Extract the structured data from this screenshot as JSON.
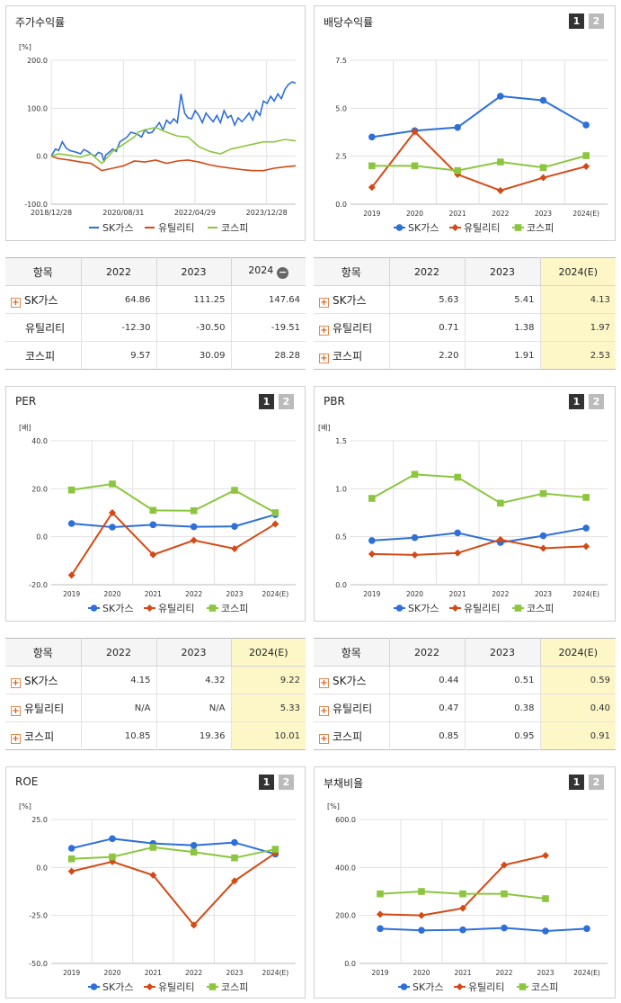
{
  "series_names": [
    "SK가스",
    "유틸리티",
    "코스피"
  ],
  "colors": {
    "sk": "#2e6fd8",
    "util": "#d44a16",
    "kospi": "#8cc63f"
  },
  "panels": {
    "stock": {
      "title": "주가수익률",
      "unit": "[%]"
    },
    "dividend": {
      "title": "배당수익률",
      "tabs": [
        "1",
        "2"
      ]
    },
    "per": {
      "title": "PER",
      "unit": "[배]",
      "tabs": [
        "1",
        "2"
      ]
    },
    "pbr": {
      "title": "PBR",
      "unit": "[배]",
      "tabs": [
        "1",
        "2"
      ]
    },
    "roe": {
      "title": "ROE",
      "unit": "[%]",
      "tabs": [
        "1",
        "2"
      ]
    },
    "debt": {
      "title": "부채비율",
      "unit": "[%]",
      "tabs": [
        "1",
        "2"
      ]
    }
  },
  "tables": {
    "stock": {
      "headers": [
        "항목",
        "2022",
        "2023",
        "2024"
      ],
      "rows": [
        {
          "label": "SK가스",
          "plus": true,
          "values": [
            "64.86",
            "111.25",
            "147.64"
          ]
        },
        {
          "label": "유틸리티",
          "plus": false,
          "values": [
            "-12.30",
            "-30.50",
            "-19.51"
          ]
        },
        {
          "label": "코스피",
          "plus": false,
          "values": [
            "9.57",
            "30.09",
            "28.28"
          ]
        }
      ]
    },
    "dividend": {
      "headers": [
        "항목",
        "2022",
        "2023",
        "2024(E)"
      ],
      "rows": [
        {
          "label": "SK가스",
          "plus": true,
          "values": [
            "5.63",
            "5.41",
            "4.13"
          ]
        },
        {
          "label": "유틸리티",
          "plus": true,
          "values": [
            "0.71",
            "1.38",
            "1.97"
          ]
        },
        {
          "label": "코스피",
          "plus": true,
          "values": [
            "2.20",
            "1.91",
            "2.53"
          ]
        }
      ]
    },
    "per": {
      "headers": [
        "항목",
        "2022",
        "2023",
        "2024(E)"
      ],
      "rows": [
        {
          "label": "SK가스",
          "plus": true,
          "values": [
            "4.15",
            "4.32",
            "9.22"
          ]
        },
        {
          "label": "유틸리티",
          "plus": true,
          "values": [
            "N/A",
            "N/A",
            "5.33"
          ]
        },
        {
          "label": "코스피",
          "plus": true,
          "values": [
            "10.85",
            "19.36",
            "10.01"
          ]
        }
      ]
    },
    "pbr": {
      "headers": [
        "항목",
        "2022",
        "2023",
        "2024(E)"
      ],
      "rows": [
        {
          "label": "SK가스",
          "plus": true,
          "values": [
            "0.44",
            "0.51",
            "0.59"
          ]
        },
        {
          "label": "유틸리티",
          "plus": true,
          "values": [
            "0.47",
            "0.38",
            "0.40"
          ]
        },
        {
          "label": "코스피",
          "plus": true,
          "values": [
            "0.85",
            "0.95",
            "0.91"
          ]
        }
      ]
    }
  },
  "chart_data": [
    {
      "id": "stock",
      "type": "line",
      "x_ticks": [
        "2018/12/28",
        "2020/08/31",
        "2022/04/29",
        "2023/12/28"
      ],
      "y_ticks": [
        "200.0",
        "100.0",
        "0.0",
        "-100.0"
      ],
      "ylim": [
        -100,
        200
      ],
      "x_range": [
        "2018/12/28",
        "2024/08/30"
      ],
      "series": [
        {
          "name": "SK가스",
          "x": [
            "2018/12/28",
            "2019/02/01",
            "2019/03/01",
            "2019/04/01",
            "2019/05/01",
            "2019/06/01",
            "2019/07/01",
            "2019/08/01",
            "2019/09/01",
            "2019/10/01",
            "2019/11/01",
            "2019/12/01",
            "2020/01/02",
            "2020/02/01",
            "2020/03/01",
            "2020/03/20",
            "2020/04/01",
            "2020/05/01",
            "2020/06/01",
            "2020/07/01",
            "2020/08/01",
            "2020/09/01",
            "2020/10/01",
            "2020/11/01",
            "2020/12/01",
            "2021/01/01",
            "2021/02/01",
            "2021/03/01",
            "2021/04/01",
            "2021/05/01",
            "2021/06/01",
            "2021/07/01",
            "2021/08/01",
            "2021/09/01",
            "2021/10/01",
            "2021/11/01",
            "2021/12/01",
            "2022/01/01",
            "2022/02/01",
            "2022/03/01",
            "2022/04/01",
            "2022/05/01",
            "2022/06/01",
            "2022/07/01",
            "2022/08/01",
            "2022/09/01",
            "2022/10/01",
            "2022/11/01",
            "2022/12/01",
            "2023/01/01",
            "2023/02/01",
            "2023/03/01",
            "2023/04/01",
            "2023/05/01",
            "2023/06/01",
            "2023/07/01",
            "2023/08/01",
            "2023/09/01",
            "2023/10/01",
            "2023/11/01",
            "2023/12/01",
            "2024/01/01",
            "2024/02/01",
            "2024/03/01",
            "2024/04/01",
            "2024/05/01",
            "2024/06/01",
            "2024/07/01",
            "2024/08/01",
            "2024/08/30"
          ],
          "values": [
            0,
            15,
            12,
            30,
            18,
            12,
            10,
            8,
            5,
            14,
            10,
            5,
            0,
            8,
            5,
            -12,
            2,
            8,
            15,
            10,
            30,
            35,
            40,
            50,
            48,
            45,
            40,
            55,
            48,
            50,
            60,
            70,
            55,
            75,
            68,
            78,
            70,
            130,
            90,
            80,
            78,
            95,
            85,
            70,
            90,
            80,
            72,
            85,
            70,
            95,
            80,
            85,
            65,
            80,
            72,
            80,
            90,
            75,
            95,
            85,
            115,
            110,
            125,
            115,
            130,
            120,
            140,
            150,
            155,
            152
          ]
        },
        {
          "name": "유틸리티",
          "x": [
            "2018/12/28",
            "2019/03/01",
            "2019/06/01",
            "2019/09/01",
            "2019/12/01",
            "2020/03/01",
            "2020/06/01",
            "2020/09/01",
            "2020/12/01",
            "2021/03/01",
            "2021/06/01",
            "2021/09/01",
            "2021/12/01",
            "2022/03/01",
            "2022/06/01",
            "2022/09/01",
            "2022/12/01",
            "2023/03/01",
            "2023/06/01",
            "2023/09/01",
            "2023/12/01",
            "2024/03/01",
            "2024/06/01",
            "2024/08/30"
          ],
          "values": [
            0,
            -5,
            -8,
            -12,
            -15,
            -30,
            -25,
            -20,
            -10,
            -12,
            -8,
            -15,
            -10,
            -8,
            -12,
            -18,
            -22,
            -25,
            -28,
            -30,
            -30,
            -25,
            -22,
            -20
          ]
        },
        {
          "name": "코스피",
          "x": [
            "2018/12/28",
            "2019/03/01",
            "2019/06/01",
            "2019/09/01",
            "2019/12/01",
            "2020/03/01",
            "2020/06/01",
            "2020/09/01",
            "2020/12/01",
            "2021/01/01",
            "2021/03/01",
            "2021/06/01",
            "2021/09/01",
            "2021/12/01",
            "2022/03/01",
            "2022/06/01",
            "2022/09/01",
            "2022/12/01",
            "2023/03/01",
            "2023/06/01",
            "2023/09/01",
            "2023/12/01",
            "2024/03/01",
            "2024/06/01",
            "2024/08/30"
          ],
          "values": [
            0,
            5,
            2,
            -2,
            5,
            -15,
            10,
            25,
            40,
            50,
            55,
            60,
            50,
            42,
            40,
            20,
            10,
            5,
            15,
            20,
            25,
            30,
            30,
            35,
            32
          ]
        }
      ]
    },
    {
      "id": "dividend",
      "type": "line",
      "categories": [
        "2019",
        "2020",
        "2021",
        "2022",
        "2023",
        "2024(E)"
      ],
      "y_ticks": [
        "7.5",
        "5.0",
        "2.5",
        "0.0"
      ],
      "ylim": [
        0,
        7.5
      ],
      "series": [
        {
          "name": "SK가스",
          "values": [
            3.5,
            3.83,
            4.0,
            5.63,
            5.41,
            4.13
          ]
        },
        {
          "name": "유틸리티",
          "values": [
            0.88,
            3.78,
            1.55,
            0.71,
            1.38,
            1.97
          ]
        },
        {
          "name": "코스피",
          "values": [
            2.0,
            2.0,
            1.75,
            2.2,
            1.91,
            2.53
          ]
        }
      ]
    },
    {
      "id": "per",
      "type": "line",
      "categories": [
        "2019",
        "2020",
        "2021",
        "2022",
        "2023",
        "2024(E)"
      ],
      "y_ticks": [
        "40.0",
        "20.0",
        "0.0",
        "-20.0"
      ],
      "ylim": [
        -20,
        40
      ],
      "series": [
        {
          "name": "SK가스",
          "values": [
            5.5,
            4.0,
            5.0,
            4.15,
            4.32,
            9.22
          ]
        },
        {
          "name": "유틸리티",
          "values": [
            -16.0,
            10.0,
            -7.5,
            -1.5,
            -5.0,
            5.33
          ]
        },
        {
          "name": "코스피",
          "values": [
            19.5,
            22.0,
            11.0,
            10.85,
            19.36,
            10.01
          ]
        }
      ]
    },
    {
      "id": "pbr",
      "type": "line",
      "categories": [
        "2019",
        "2020",
        "2021",
        "2022",
        "2023",
        "2024(E)"
      ],
      "y_ticks": [
        "1.5",
        "1.0",
        "0.5",
        "0.0"
      ],
      "ylim": [
        0,
        1.5
      ],
      "series": [
        {
          "name": "SK가스",
          "values": [
            0.46,
            0.49,
            0.54,
            0.44,
            0.51,
            0.59
          ]
        },
        {
          "name": "유틸리티",
          "values": [
            0.32,
            0.31,
            0.33,
            0.47,
            0.38,
            0.4
          ]
        },
        {
          "name": "코스피",
          "values": [
            0.9,
            1.15,
            1.12,
            0.85,
            0.95,
            0.91
          ]
        }
      ]
    },
    {
      "id": "roe",
      "type": "line",
      "categories": [
        "2019",
        "2020",
        "2021",
        "2022",
        "2023",
        "2024(E)"
      ],
      "y_ticks": [
        "25.0",
        "0.0",
        "-25.0",
        "-50.0"
      ],
      "ylim": [
        -50,
        25
      ],
      "series": [
        {
          "name": "SK가스",
          "values": [
            10.0,
            15.0,
            12.5,
            11.5,
            13.0,
            7.0
          ]
        },
        {
          "name": "유틸리티",
          "values": [
            -2.0,
            3.0,
            -4.0,
            -30.0,
            -7.0,
            7.5
          ]
        },
        {
          "name": "코스피",
          "values": [
            4.5,
            5.5,
            10.5,
            8.0,
            5.0,
            9.5
          ]
        }
      ]
    },
    {
      "id": "debt",
      "type": "line",
      "categories": [
        "2019",
        "2020",
        "2021",
        "2022",
        "2023",
        "2024(E)"
      ],
      "y_ticks": [
        "600.0",
        "400.0",
        "200.0",
        "0.0"
      ],
      "ylim": [
        0,
        600
      ],
      "series": [
        {
          "name": "SK가스",
          "values": [
            145,
            138,
            140,
            148,
            135,
            145
          ]
        },
        {
          "name": "유틸리티",
          "values": [
            205,
            200,
            230,
            410,
            450,
            null
          ]
        },
        {
          "name": "코스피",
          "values": [
            290,
            300,
            290,
            290,
            270,
            null
          ]
        }
      ]
    }
  ]
}
